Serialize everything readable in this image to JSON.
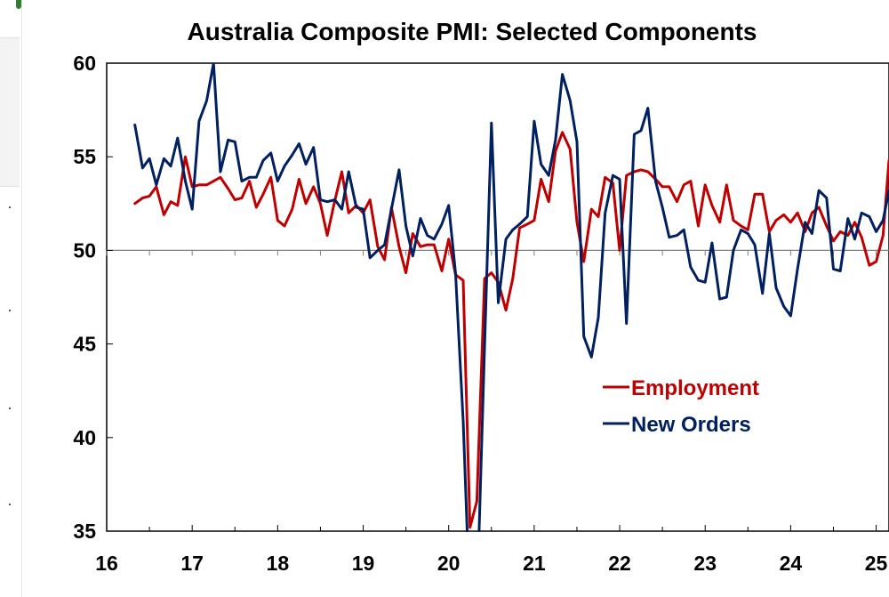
{
  "chart_data": {
    "type": "line",
    "title": "Australia Composite PMI: Selected Components",
    "xlabel": "",
    "ylabel": "",
    "xlim": [
      16,
      25.15
    ],
    "ylim": [
      35,
      60
    ],
    "y_ticks": [
      35,
      40,
      45,
      50,
      55,
      60
    ],
    "x_ticks": [
      16,
      17,
      18,
      19,
      20,
      21,
      22,
      23,
      24,
      25
    ],
    "x_tick_labels": [
      "16",
      "17",
      "18",
      "19",
      "20",
      "21",
      "22",
      "23",
      "24",
      "25"
    ],
    "reference_line": 50,
    "grid": false,
    "legend_position": "center-right",
    "colors": {
      "employment": "#c00000",
      "new_orders": "#002060",
      "axis": "#000000",
      "grid": "#808080"
    },
    "series": [
      {
        "name": "Employment",
        "color": "#c00000",
        "x": [
          16.33,
          16.42,
          16.5,
          16.58,
          16.67,
          16.75,
          16.83,
          16.92,
          17.0,
          17.08,
          17.17,
          17.25,
          17.33,
          17.42,
          17.5,
          17.58,
          17.67,
          17.75,
          17.83,
          17.92,
          18.0,
          18.08,
          18.17,
          18.25,
          18.33,
          18.42,
          18.5,
          18.58,
          18.67,
          18.75,
          18.83,
          18.92,
          19.0,
          19.08,
          19.17,
          19.25,
          19.33,
          19.42,
          19.5,
          19.58,
          19.67,
          19.75,
          19.83,
          19.92,
          20.0,
          20.08,
          20.17,
          20.25,
          20.33,
          20.42,
          20.5,
          20.58,
          20.67,
          20.75,
          20.83,
          20.92,
          21.0,
          21.08,
          21.17,
          21.25,
          21.33,
          21.42,
          21.5,
          21.58,
          21.67,
          21.75,
          21.83,
          21.92,
          22.0,
          22.08,
          22.17,
          22.25,
          22.33,
          22.42,
          22.5,
          22.58,
          22.67,
          22.75,
          22.83,
          22.92,
          23.0,
          23.08,
          23.17,
          23.25,
          23.33,
          23.42,
          23.5,
          23.58,
          23.67,
          23.75,
          23.83,
          23.92,
          24.0,
          24.08,
          24.17,
          24.25,
          24.33,
          24.42,
          24.5,
          24.58,
          24.67,
          24.75,
          24.83,
          24.92,
          25.0,
          25.08,
          25.15
        ],
        "y": [
          52.5,
          52.8,
          52.9,
          53.4,
          51.9,
          52.6,
          52.4,
          55.0,
          53.4,
          53.5,
          53.5,
          53.7,
          53.9,
          53.3,
          52.7,
          52.8,
          53.7,
          52.3,
          53.0,
          53.9,
          51.6,
          51.3,
          52.2,
          53.8,
          52.5,
          53.4,
          52.5,
          50.8,
          52.7,
          54.2,
          52.0,
          52.4,
          52.0,
          52.7,
          50.2,
          49.5,
          52.3,
          50.2,
          48.8,
          50.9,
          50.2,
          50.3,
          50.3,
          48.9,
          50.6,
          48.7,
          48.4,
          35.2,
          36.6,
          48.5,
          48.8,
          48.3,
          46.8,
          48.5,
          51.2,
          51.4,
          51.6,
          53.8,
          52.6,
          55.3,
          56.3,
          55.4,
          51.5,
          49.4,
          52.2,
          51.8,
          53.9,
          53.6,
          50.0,
          54.0,
          54.2,
          54.3,
          54.2,
          53.8,
          53.4,
          53.4,
          52.6,
          53.5,
          53.7,
          51.3,
          53.5,
          52.4,
          51.5,
          53.5,
          51.6,
          51.3,
          51.1,
          53.0,
          53.0,
          51.0,
          51.6,
          51.9,
          51.5,
          52.0,
          51.0,
          52.0,
          52.3,
          51.3,
          50.5,
          51.0,
          50.8,
          51.5,
          50.7,
          49.2,
          49.4,
          50.8,
          54.8
        ]
      },
      {
        "name": "New Orders",
        "color": "#002060",
        "x": [
          16.33,
          16.42,
          16.5,
          16.58,
          16.67,
          16.75,
          16.83,
          16.92,
          17.0,
          17.08,
          17.17,
          17.25,
          17.33,
          17.42,
          17.5,
          17.58,
          17.67,
          17.75,
          17.83,
          17.92,
          18.0,
          18.08,
          18.17,
          18.25,
          18.33,
          18.42,
          18.5,
          18.58,
          18.67,
          18.75,
          18.83,
          18.92,
          19.0,
          19.08,
          19.17,
          19.25,
          19.33,
          19.42,
          19.5,
          19.58,
          19.67,
          19.75,
          19.83,
          19.92,
          20.0,
          20.08,
          20.17,
          20.25,
          20.33,
          20.42,
          20.5,
          20.58,
          20.67,
          20.75,
          20.83,
          20.92,
          21.0,
          21.08,
          21.17,
          21.25,
          21.33,
          21.42,
          21.5,
          21.58,
          21.67,
          21.75,
          21.83,
          21.92,
          22.0,
          22.08,
          22.17,
          22.25,
          22.33,
          22.42,
          22.5,
          22.58,
          22.67,
          22.75,
          22.83,
          22.92,
          23.0,
          23.08,
          23.17,
          23.25,
          23.33,
          23.42,
          23.5,
          23.58,
          23.67,
          23.75,
          23.83,
          23.92,
          24.0,
          24.08,
          24.17,
          24.25,
          24.33,
          24.42,
          24.5,
          24.58,
          24.67,
          24.75,
          24.83,
          24.92,
          25.0,
          25.08,
          25.15
        ],
        "y": [
          56.7,
          54.4,
          54.9,
          53.5,
          54.9,
          54.5,
          56.0,
          53.7,
          52.2,
          56.9,
          58.0,
          60.0,
          54.2,
          55.9,
          55.8,
          53.7,
          53.9,
          53.9,
          54.8,
          55.2,
          53.7,
          54.5,
          55.1,
          55.7,
          54.6,
          55.5,
          52.7,
          52.6,
          52.7,
          52.2,
          54.2,
          52.3,
          52.2,
          49.6,
          50.0,
          50.3,
          52.2,
          54.3,
          51.3,
          49.7,
          51.7,
          50.8,
          50.6,
          51.4,
          52.4,
          48.8,
          40.9,
          30.8,
          31.0,
          44.9,
          56.8,
          47.2,
          50.6,
          51.1,
          51.4,
          51.8,
          56.9,
          54.6,
          54.0,
          55.9,
          59.4,
          58.0,
          55.8,
          45.4,
          44.3,
          46.4,
          52.0,
          54.0,
          53.8,
          46.1,
          56.2,
          56.4,
          57.6,
          53.7,
          52.3,
          50.7,
          50.8,
          51.1,
          49.1,
          48.4,
          48.3,
          50.4,
          47.4,
          47.5,
          50.0,
          51.1,
          50.9,
          50.3,
          47.7,
          50.9,
          48.0,
          47.0,
          46.5,
          49.0,
          51.5,
          50.9,
          53.2,
          52.8,
          49.0,
          48.9,
          51.7,
          50.6,
          52.0,
          51.8,
          51.0,
          51.6,
          53.2
        ]
      }
    ]
  }
}
